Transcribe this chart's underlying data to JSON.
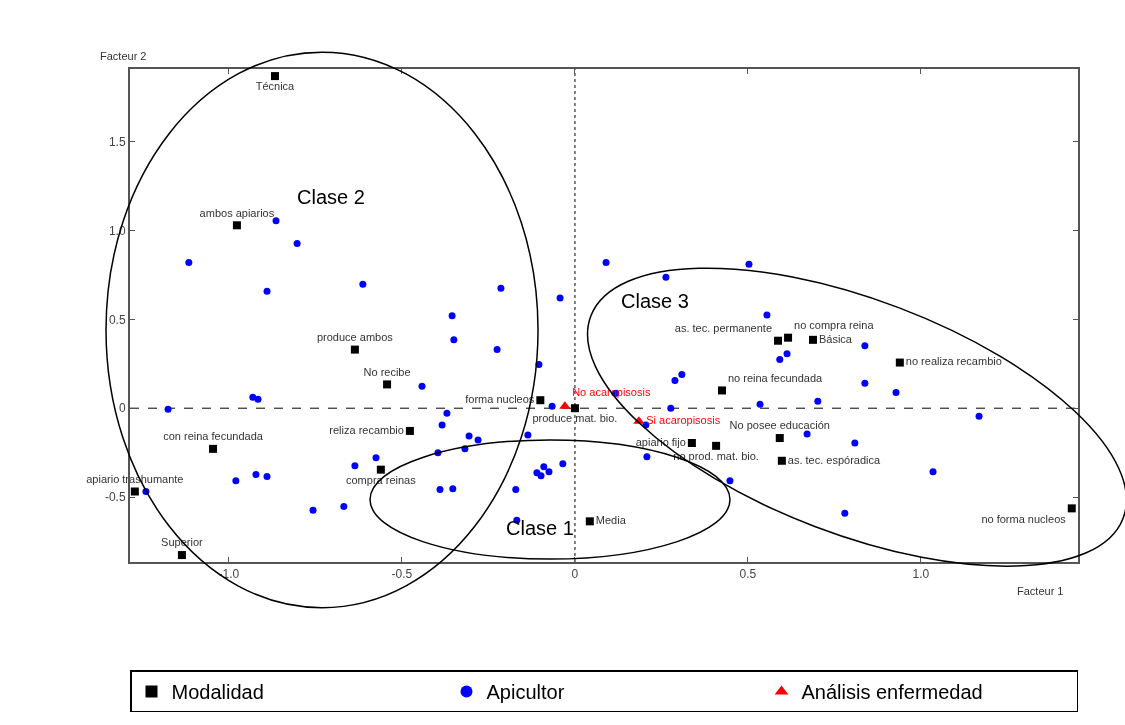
{
  "chart_data": {
    "type": "scatter",
    "xlabel": "Facteur 1",
    "ylabel": "Facteur 2",
    "xlim": [
      -1.286,
      1.454
    ],
    "ylim": [
      -0.866,
      1.91
    ],
    "xticks": [
      {
        "value": -1,
        "label": "-1.0"
      },
      {
        "value": -0.5,
        "label": "-0.5"
      },
      0,
      {
        "value": 0.5,
        "label": "0.5"
      },
      {
        "value": 1,
        "label": "1.0"
      }
    ],
    "yticks": [
      {
        "value": -0.5,
        "label": "-0.5"
      },
      0,
      {
        "value": 0.5,
        "label": "0.5"
      },
      {
        "value": 1,
        "label": "1.0"
      },
      {
        "value": 1.5,
        "label": "1.5"
      }
    ],
    "grid": false,
    "legend": "bottom",
    "ref_lines": [
      {
        "axis": "x",
        "value": 0,
        "line_style": "dotted",
        "color": "#000000"
      },
      {
        "axis": "y",
        "value": 0,
        "line_style": "dashed",
        "color": "#000000"
      }
    ],
    "annotations": [
      "Clase 1",
      "Clase 2",
      "Clase 3"
    ],
    "series": [
      {
        "name": "Modalidad",
        "color": "#000000",
        "marker": "square",
        "x": [
          -0.867,
          -0.977,
          -0.636,
          -0.543,
          -0.1,
          0.0,
          -0.477,
          -1.046,
          -1.272,
          -0.561,
          -1.136,
          0.043,
          0.587,
          0.616,
          0.688,
          0.939,
          0.425,
          0.592,
          0.338,
          0.408,
          0.598,
          1.436
        ],
        "values": [
          1.87,
          1.03,
          0.33,
          0.134,
          0.045,
          0.0,
          -0.128,
          -0.229,
          -0.469,
          -0.346,
          -0.827,
          -0.637,
          0.38,
          0.397,
          0.385,
          0.257,
          0.1,
          -0.168,
          -0.196,
          -0.212,
          -0.296,
          -0.564
        ],
        "value_labels": [
          "Técnica",
          "ambos apiarios",
          "produce ambos",
          "No recibe",
          "forma nucleos",
          "produce mat. bio.",
          "reliza recambio",
          "con reina fecundada",
          "apiario trashumante",
          "compra reinas",
          "Superior",
          "Media",
          "as. tec. permanente",
          "no compra reina",
          "Básica",
          "no realiza recambio",
          "no reina fecundada",
          "No posee educación",
          "apiario fijo",
          "no prod. mat. bio.",
          "as. tec. espóradica",
          "no forma nucleos"
        ]
      },
      {
        "name": "Apicultor",
        "color": "#0000ff",
        "marker": "circle",
        "x": [
          -0.864,
          -0.803,
          -1.116,
          -0.89,
          -0.613,
          -0.214,
          -0.043,
          -0.355,
          -0.35,
          -0.225,
          -0.104,
          -0.442,
          -0.931,
          -0.916,
          -1.176,
          -0.066,
          -0.37,
          -0.384,
          -0.306,
          -0.28,
          -0.136,
          -0.318,
          -0.396,
          -0.575,
          -0.636,
          -0.035,
          -0.09,
          -0.11,
          -0.098,
          -0.075,
          -0.98,
          -0.922,
          -0.89,
          -1.24,
          -0.39,
          -0.353,
          -0.171,
          -0.757,
          -0.668,
          -0.168,
          0.09,
          0.503,
          0.263,
          0.555,
          0.838,
          0.592,
          0.613,
          0.289,
          0.309,
          0.118,
          0.838,
          0.928,
          0.702,
          0.535,
          0.277,
          1.168,
          0.205,
          0.671,
          0.809,
          0.208,
          0.448,
          1.035,
          0.78
        ],
        "values": [
          1.056,
          0.927,
          0.821,
          0.659,
          0.698,
          0.676,
          0.62,
          0.52,
          0.385,
          0.33,
          0.246,
          0.123,
          0.061,
          0.05,
          -0.006,
          0.011,
          -0.028,
          -0.095,
          -0.156,
          -0.179,
          -0.151,
          -0.229,
          -0.251,
          -0.279,
          -0.324,
          -0.313,
          -0.33,
          -0.363,
          -0.38,
          -0.358,
          -0.408,
          -0.374,
          -0.385,
          -0.469,
          -0.458,
          -0.453,
          -0.458,
          -0.575,
          -0.553,
          -0.631,
          0.821,
          0.81,
          0.737,
          0.525,
          0.352,
          0.274,
          0.307,
          0.156,
          0.19,
          0.084,
          0.14,
          0.089,
          0.039,
          0.022,
          0.0,
          -0.045,
          -0.095,
          -0.145,
          -0.196,
          -0.274,
          -0.408,
          -0.358,
          -0.592
        ]
      },
      {
        "name": "Análisis enfermedad",
        "color": "#ff0000",
        "marker": "triangle",
        "x": [
          -0.029,
          0.185
        ],
        "values": [
          0.011,
          -0.073
        ],
        "value_labels": [
          "No acaropisosis",
          "Si acaropisosis"
        ]
      }
    ]
  }
}
